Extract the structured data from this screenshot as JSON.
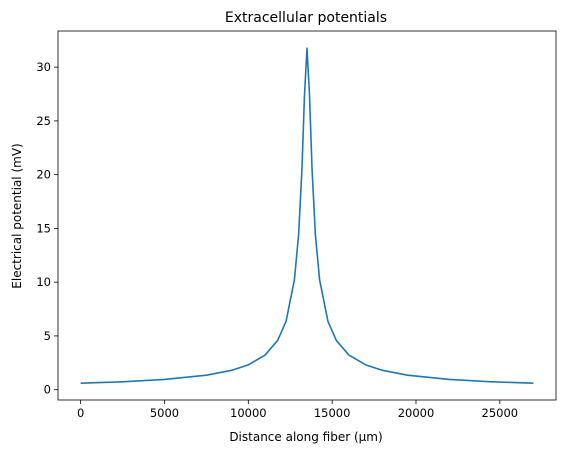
{
  "chart_data": {
    "type": "line",
    "title": "Extracellular potentials",
    "x_label": "Distance along fiber (µm)",
    "y_label": "Electrical potential (mV)",
    "x": [
      0,
      2500,
      5000,
      7500,
      9000,
      10000,
      11000,
      11750,
      12250,
      12750,
      13000,
      13200,
      13350,
      13500,
      13650,
      13800,
      14000,
      14250,
      14750,
      15250,
      16000,
      17000,
      18000,
      19500,
      22000,
      24500,
      27000
    ],
    "series": [
      {
        "name": "potential",
        "color": "#1f77b4",
        "values": [
          0.6,
          0.736,
          0.953,
          1.35,
          1.8,
          2.31,
          3.22,
          4.58,
          6.35,
          10.23,
          14.43,
          20.57,
          27.38,
          31.76,
          27.38,
          20.57,
          14.43,
          10.23,
          6.35,
          4.58,
          3.22,
          2.31,
          1.8,
          1.35,
          0.953,
          0.736,
          0.6
        ]
      }
    ],
    "xlim": [
      -1350,
      28350
    ],
    "xticks": [
      0,
      5000,
      10000,
      15000,
      20000,
      25000
    ],
    "ylim": [
      -0.96,
      33.36
    ],
    "yticks": [
      0,
      5,
      10,
      15,
      20,
      25,
      30
    ]
  }
}
